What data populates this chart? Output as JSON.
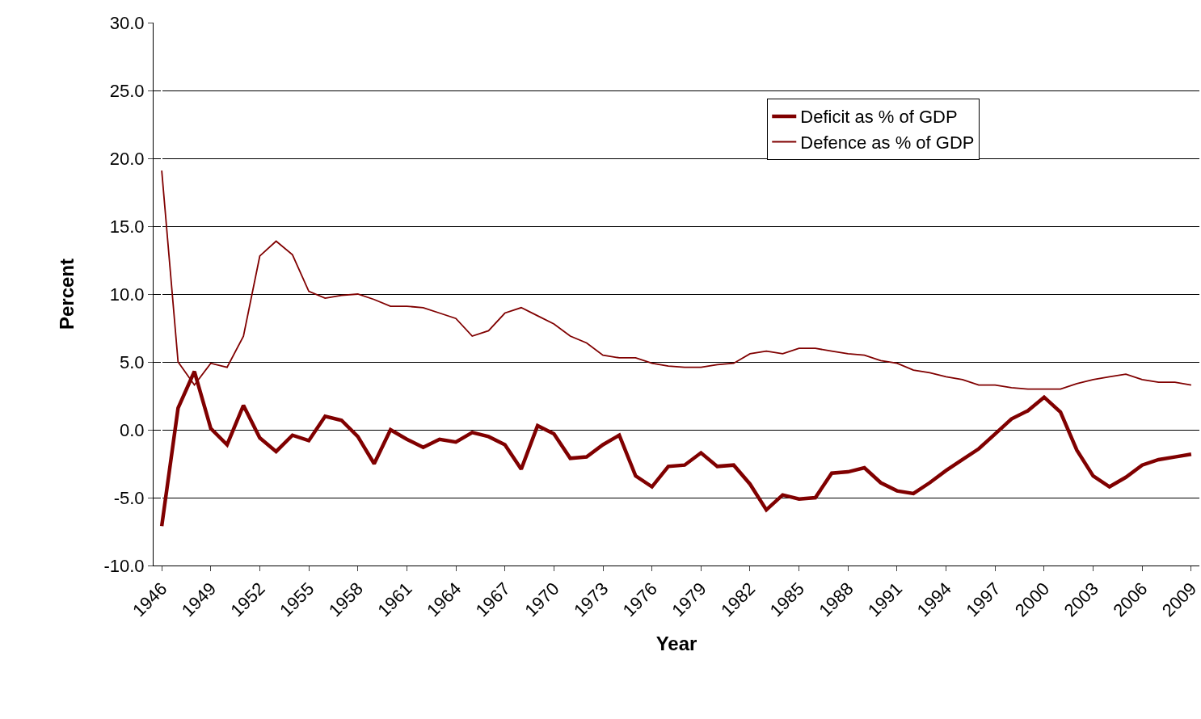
{
  "chart_data": {
    "type": "line",
    "xlabel": "Year",
    "ylabel": "Percent",
    "categories": [
      "1946",
      null,
      null,
      "1949",
      null,
      null,
      "1952",
      null,
      null,
      "1955",
      null,
      null,
      "1958",
      null,
      null,
      "1961",
      null,
      null,
      "1964",
      null,
      null,
      "1967",
      null,
      null,
      "1970",
      null,
      null,
      "1973",
      null,
      null,
      "1976",
      null,
      null,
      "1979",
      null,
      null,
      "1982",
      null,
      null,
      "1985",
      null,
      null,
      "1988",
      null,
      null,
      "1991",
      null,
      null,
      "1994",
      null,
      null,
      "1997",
      null,
      null,
      "2000",
      null,
      null,
      "2003",
      null,
      null,
      "2006",
      null,
      null,
      "2009"
    ],
    "series": [
      {
        "name": "Deficit as % of GDP",
        "color": "#800000",
        "values": [
          -7.1,
          1.6,
          4.3,
          0.1,
          -1.1,
          1.8,
          -0.6,
          -1.6,
          -0.4,
          -0.8,
          1.0,
          0.7,
          -0.5,
          -2.5,
          0.0,
          -0.7,
          -1.3,
          -0.7,
          -0.9,
          -0.2,
          -0.5,
          -1.1,
          -2.9,
          0.3,
          -0.3,
          -2.1,
          -2.0,
          -1.1,
          -0.4,
          -3.4,
          -4.2,
          -2.7,
          -2.6,
          -1.7,
          -2.7,
          -2.6,
          -4.0,
          -5.9,
          -4.8,
          -5.1,
          -5.0,
          -3.2,
          -3.1,
          -2.8,
          -3.9,
          -4.5,
          -4.7,
          -3.9,
          -3.0,
          -2.2,
          -1.4,
          -0.3,
          0.8,
          1.4,
          2.4,
          1.3,
          -1.5,
          -3.4,
          -4.2,
          -3.5,
          -2.6,
          -2.2,
          -2.0,
          -1.8
        ]
      },
      {
        "name": "Defence as % of GDP",
        "color": "#800000",
        "values": [
          19.1,
          5.0,
          3.3,
          4.9,
          4.6,
          6.9,
          12.8,
          13.9,
          12.9,
          10.2,
          9.7,
          9.9,
          10.0,
          9.6,
          9.1,
          9.1,
          9.0,
          8.6,
          8.2,
          6.9,
          7.3,
          8.6,
          9.0,
          8.4,
          7.8,
          6.9,
          6.4,
          5.5,
          5.3,
          5.3,
          4.9,
          4.7,
          4.6,
          4.6,
          4.8,
          4.9,
          5.6,
          5.8,
          5.6,
          6.0,
          6.0,
          5.8,
          5.6,
          5.5,
          5.1,
          4.9,
          4.4,
          4.2,
          3.9,
          3.7,
          3.3,
          3.3,
          3.1,
          3.0,
          3.0,
          3.0,
          3.4,
          3.7,
          3.9,
          4.1,
          3.7,
          3.5,
          3.5,
          3.3
        ]
      }
    ],
    "ylim": [
      -10,
      30
    ],
    "yticks": [
      {
        "value": -10,
        "label": "-10.0"
      },
      {
        "value": -5,
        "label": "-5.0"
      },
      {
        "value": 0,
        "label": "0.0"
      },
      {
        "value": 5,
        "label": "5.0"
      },
      {
        "value": 10,
        "label": "10.0"
      },
      {
        "value": 15,
        "label": "15.0"
      },
      {
        "value": 20,
        "label": "20.0"
      },
      {
        "value": 25,
        "label": "25.0"
      },
      {
        "value": 30,
        "label": "30.0"
      }
    ],
    "grid": "y",
    "legend": "top right",
    "marker": "none",
    "line_style": "solid"
  }
}
